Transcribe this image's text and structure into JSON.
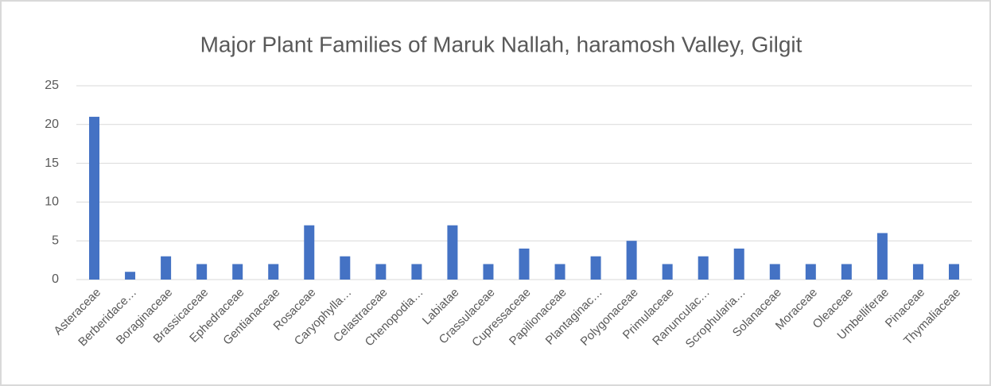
{
  "chart_data": {
    "type": "bar",
    "title": "Major Plant Families of Maruk Nallah, haramosh Valley, Gilgit",
    "categories": [
      "Asteraceae",
      "Berberidace…",
      "Boraginaceae",
      "Brassicaceae",
      "Ephedraceae",
      "Gentianaceae",
      "Rosaceae",
      "Caryophylla…",
      "Celastraceae",
      "Chenopodia…",
      "Labiatae",
      "Crassulaceae",
      "Cupressaceae",
      "Papilionaceae",
      "Plantaginac…",
      "Polygonaceae",
      "Primulaceae",
      "Ranunculac…",
      "Scrophularia…",
      "Solanaceae",
      "Moraceae",
      "Oleaceae",
      "Umbelliferae",
      "Pinaceae",
      "Thymaliaceae"
    ],
    "values": [
      21,
      1,
      3,
      2,
      2,
      2,
      7,
      3,
      2,
      2,
      7,
      2,
      4,
      2,
      3,
      5,
      2,
      3,
      4,
      2,
      2,
      2,
      6,
      2,
      2
    ],
    "color": "#4472c4",
    "ylim": [
      0,
      25
    ],
    "yticks": [
      0,
      5,
      10,
      15,
      20,
      25
    ],
    "grid": true
  }
}
